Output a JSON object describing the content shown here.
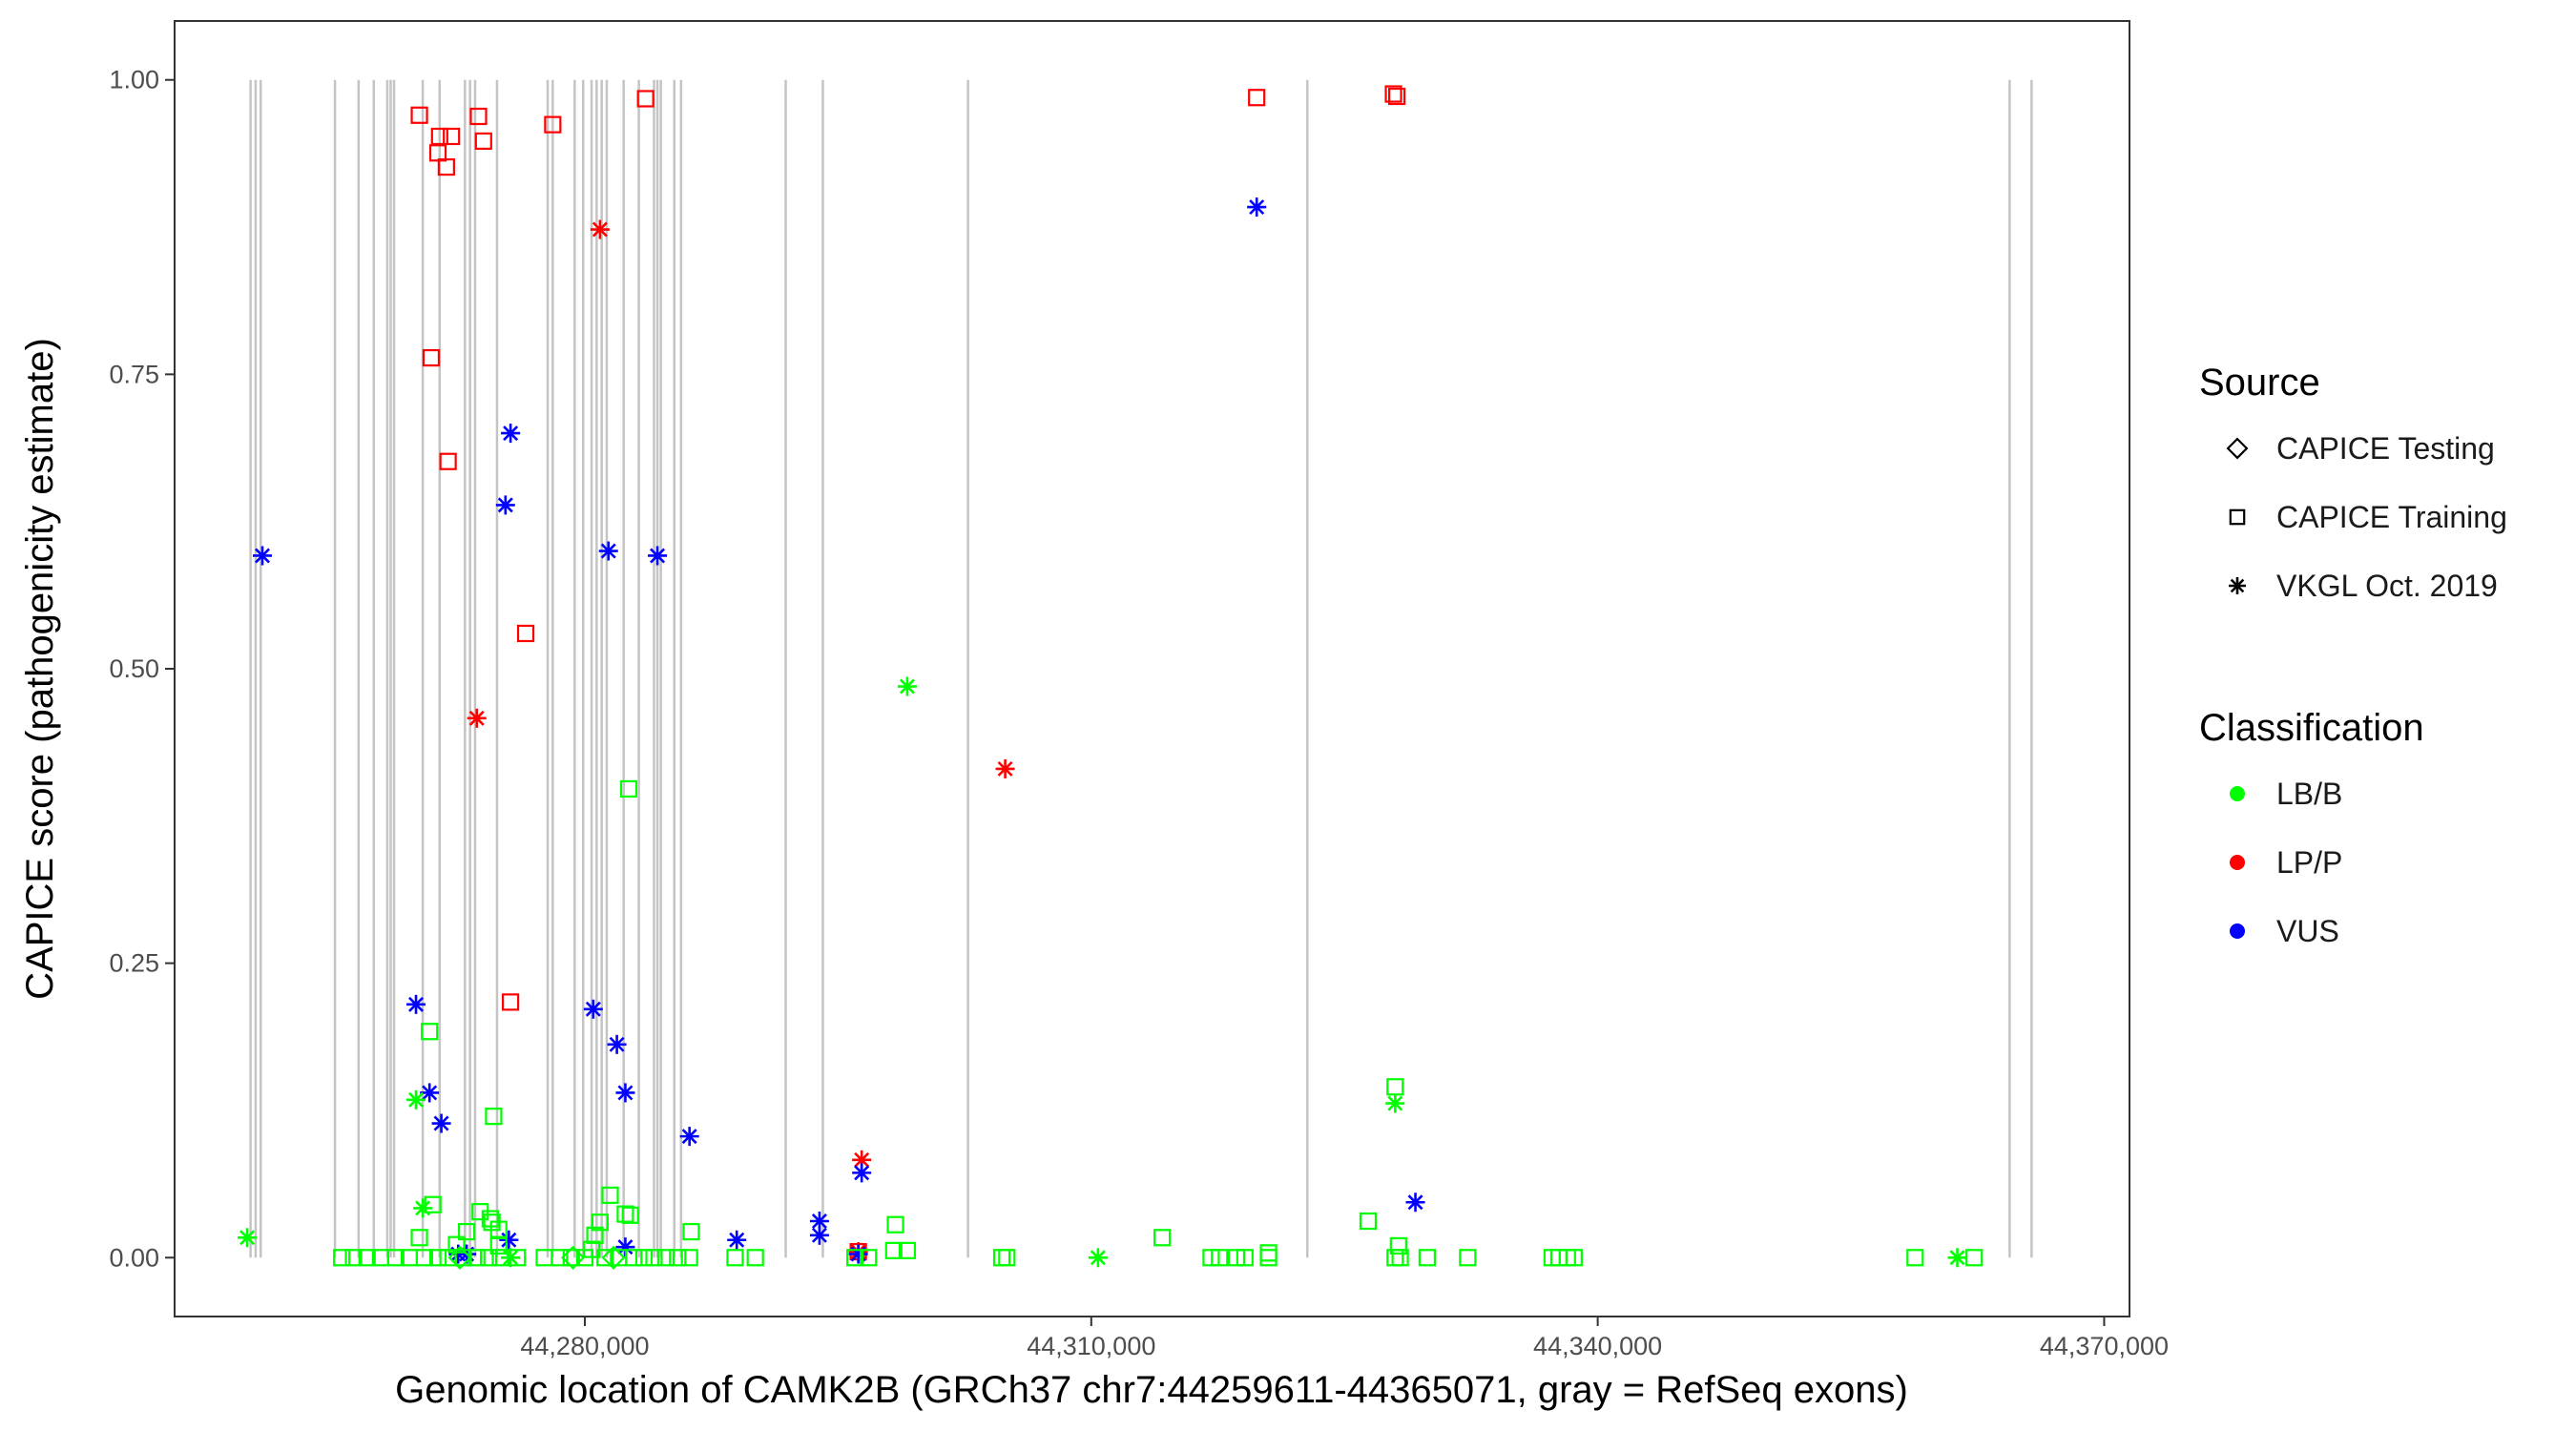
{
  "chart_data": {
    "type": "scatter",
    "xlabel": "Genomic location of CAMK2B (GRCh37 chr7:44259611-44365071, gray = RefSeq exons)",
    "ylabel": "CAPICE score (pathogenicity estimate)",
    "xlim": [
      44255700,
      44371500
    ],
    "ylim": [
      -0.05,
      1.05
    ],
    "x_ticks": [
      44280000,
      44310000,
      44340000,
      44370000
    ],
    "x_tick_labels": [
      "44,280,000",
      "44,310,000",
      "44,340,000",
      "44,370,000"
    ],
    "y_ticks": [
      0,
      0.25,
      0.5,
      0.75,
      1
    ],
    "y_tick_labels": [
      "0.00",
      "0.25",
      "0.50",
      "0.75",
      "1.00"
    ],
    "grid": false,
    "legend_position": "right",
    "exons": [
      44260200,
      44260500,
      44260800,
      44265200,
      44266600,
      44267500,
      44268300,
      44268500,
      44268700,
      44270400,
      44271400,
      44272900,
      44273200,
      44273500,
      44274800,
      44277800,
      44278100,
      44279400,
      44279900,
      44280400,
      44280700,
      44281000,
      44281300,
      44282300,
      44283200,
      44284100,
      44284300,
      44284500,
      44285300,
      44285700,
      44291900,
      44294100,
      44302700,
      44322800,
      44364400,
      44365700
    ],
    "legend": {
      "source": {
        "title": "Source",
        "items": [
          {
            "label": "CAPICE Testing",
            "shape": "diamond"
          },
          {
            "label": "CAPICE Training",
            "shape": "square"
          },
          {
            "label": "VKGL Oct. 2019",
            "shape": "asterisk"
          }
        ]
      },
      "classification": {
        "title": "Classification",
        "items": [
          {
            "label": "LB/B",
            "color": "#00ff00"
          },
          {
            "label": "LP/P",
            "color": "#ff0000"
          },
          {
            "label": "VUS",
            "color": "#0000ff"
          }
        ]
      }
    },
    "series": [
      {
        "classification": "LP/P",
        "source": "CAPICE Training",
        "color": "#ff0000",
        "shape": "square",
        "points": [
          [
            44270200,
            0.97
          ],
          [
            44273700,
            0.969
          ],
          [
            44271400,
            0.952
          ],
          [
            44272100,
            0.952
          ],
          [
            44271300,
            0.938
          ],
          [
            44274000,
            0.948
          ],
          [
            44271800,
            0.926
          ],
          [
            44278100,
            0.962
          ],
          [
            44283600,
            0.984
          ],
          [
            44319800,
            0.985
          ],
          [
            44327900,
            0.988
          ],
          [
            44328100,
            0.986
          ],
          [
            44270900,
            0.764
          ],
          [
            44271900,
            0.676
          ],
          [
            44276500,
            0.53
          ],
          [
            44275600,
            0.217
          ],
          [
            44296200,
            0.005
          ]
        ]
      },
      {
        "classification": "LP/P",
        "source": "VKGL Oct. 2019",
        "color": "#ff0000",
        "shape": "asterisk",
        "points": [
          [
            44280900,
            0.873
          ],
          [
            44273600,
            0.458
          ],
          [
            44304900,
            0.415
          ],
          [
            44296400,
            0.083
          ],
          [
            44296200,
            0.005
          ]
        ]
      },
      {
        "classification": "VUS",
        "source": "VKGL Oct. 2019",
        "color": "#0000ff",
        "shape": "asterisk",
        "points": [
          [
            44260900,
            0.596
          ],
          [
            44275600,
            0.7
          ],
          [
            44275300,
            0.639
          ],
          [
            44281400,
            0.6
          ],
          [
            44284300,
            0.596
          ],
          [
            44319800,
            0.892
          ],
          [
            44270000,
            0.215
          ],
          [
            44280500,
            0.211
          ],
          [
            44281900,
            0.181
          ],
          [
            44270800,
            0.14
          ],
          [
            44282400,
            0.14
          ],
          [
            44271500,
            0.114
          ],
          [
            44286200,
            0.103
          ],
          [
            44296400,
            0.072
          ],
          [
            44293900,
            0.031
          ],
          [
            44293900,
            0.019
          ],
          [
            44289000,
            0.015
          ],
          [
            44275500,
            0.015
          ],
          [
            44282400,
            0.009
          ],
          [
            44329200,
            0.047
          ],
          [
            44296200,
            0.003
          ],
          [
            44273000,
            0.003
          ],
          [
            44272500,
            0.003
          ]
        ]
      },
      {
        "classification": "LB/B",
        "source": "VKGL Oct. 2019",
        "color": "#00ff00",
        "shape": "asterisk",
        "points": [
          [
            44260000,
            0.017
          ],
          [
            44299100,
            0.485
          ],
          [
            44270000,
            0.134
          ],
          [
            44270400,
            0.042
          ],
          [
            44328000,
            0.131
          ],
          [
            44310400,
            0.0
          ],
          [
            44361300,
            0.0
          ],
          [
            44275600,
            0.0
          ]
        ]
      },
      {
        "classification": "LB/B",
        "source": "CAPICE Training",
        "color": "#00ff00",
        "shape": "square",
        "points": [
          [
            44282600,
            0.398
          ],
          [
            44270800,
            0.192
          ],
          [
            44328000,
            0.145
          ],
          [
            44274600,
            0.12
          ],
          [
            44328200,
            0.01
          ],
          [
            44271000,
            0.045
          ],
          [
            44273800,
            0.039
          ],
          [
            44274400,
            0.033
          ],
          [
            44274500,
            0.03
          ],
          [
            44274900,
            0.024
          ],
          [
            44281500,
            0.053
          ],
          [
            44282400,
            0.037
          ],
          [
            44282700,
            0.036
          ],
          [
            44286300,
            0.022
          ],
          [
            44280900,
            0.03
          ],
          [
            44280600,
            0.019
          ],
          [
            44273000,
            0.022
          ],
          [
            44270200,
            0.017
          ],
          [
            44272400,
            0.011
          ],
          [
            44274900,
            0.01
          ],
          [
            44280400,
            0.007
          ],
          [
            44298400,
            0.028
          ],
          [
            44298300,
            0.006
          ],
          [
            44299100,
            0.006
          ],
          [
            44314200,
            0.017
          ],
          [
            44326400,
            0.031
          ],
          [
            44320500,
            0.004
          ],
          [
            44265600,
            0.0
          ],
          [
            44266300,
            0.0
          ],
          [
            44267100,
            0.0
          ],
          [
            44267900,
            0.0
          ],
          [
            44268800,
            0.0
          ],
          [
            44269600,
            0.0
          ],
          [
            44270500,
            0.0
          ],
          [
            44271300,
            0.0
          ],
          [
            44271900,
            0.0
          ],
          [
            44272800,
            0.0
          ],
          [
            44273600,
            0.0
          ],
          [
            44274300,
            0.0
          ],
          [
            44275000,
            0.0
          ],
          [
            44276000,
            0.0
          ],
          [
            44277600,
            0.0
          ],
          [
            44278500,
            0.0
          ],
          [
            44279200,
            0.0
          ],
          [
            44280000,
            0.0
          ],
          [
            44281200,
            0.0
          ],
          [
            44282000,
            0.0
          ],
          [
            44282900,
            0.0
          ],
          [
            44283500,
            0.0
          ],
          [
            44284100,
            0.0
          ],
          [
            44284800,
            0.0
          ],
          [
            44285500,
            0.0
          ],
          [
            44286200,
            0.0
          ],
          [
            44288900,
            0.0
          ],
          [
            44290100,
            0.0
          ],
          [
            44296000,
            0.0
          ],
          [
            44296800,
            0.0
          ],
          [
            44304700,
            0.0
          ],
          [
            44305000,
            0.0
          ],
          [
            44317100,
            0.0
          ],
          [
            44317600,
            0.0
          ],
          [
            44318600,
            0.0
          ],
          [
            44319100,
            0.0
          ],
          [
            44320500,
            0.0
          ],
          [
            44328000,
            0.0
          ],
          [
            44328300,
            0.0
          ],
          [
            44329900,
            0.0
          ],
          [
            44332300,
            0.0
          ],
          [
            44337300,
            0.0
          ],
          [
            44337700,
            0.0
          ],
          [
            44338200,
            0.0
          ],
          [
            44338600,
            0.0
          ],
          [
            44358800,
            0.0
          ],
          [
            44362300,
            0.0
          ]
        ]
      },
      {
        "classification": "LB/B",
        "source": "CAPICE Testing",
        "color": "#00ff00",
        "shape": "diamond",
        "points": [
          [
            44272600,
            0.0
          ],
          [
            44279300,
            0.0
          ],
          [
            44281700,
            0.0
          ]
        ]
      }
    ]
  }
}
